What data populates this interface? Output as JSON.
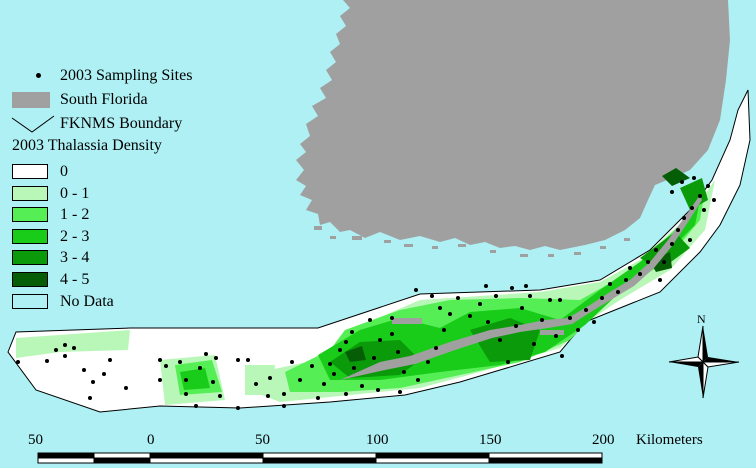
{
  "legend": {
    "sampling_sites": "2003 Sampling Sites",
    "south_florida": "South Florida",
    "boundary": "FKNMS Boundary",
    "density_title": "2003 Thalassia Density",
    "classes": [
      {
        "label": "0",
        "color": "#ffffff"
      },
      {
        "label": "0 - 1",
        "color": "#b9f7b9"
      },
      {
        "label": "1 - 2",
        "color": "#55ee55"
      },
      {
        "label": "2 - 3",
        "color": "#19cc19"
      },
      {
        "label": "3 - 4",
        "color": "#0a9a0a"
      },
      {
        "label": "4 - 5",
        "color": "#055e05"
      }
    ],
    "no_data": {
      "label": "No Data",
      "color": "#aef0f4"
    }
  },
  "land_color": "#a0a0a0",
  "water_color": "#aef0f4",
  "scale_bar": {
    "labels": [
      "50",
      "0",
      "50",
      "100",
      "150",
      "200"
    ],
    "unit": "Kilometers"
  },
  "north_arrow": {
    "label": "N"
  }
}
